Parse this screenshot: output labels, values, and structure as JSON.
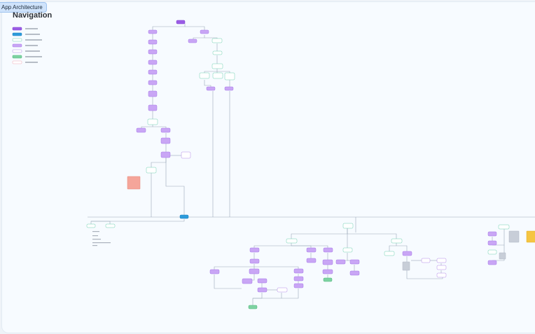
{
  "tab": {
    "title": "App Architecture"
  },
  "header": {
    "title": "Navigation"
  }
}
